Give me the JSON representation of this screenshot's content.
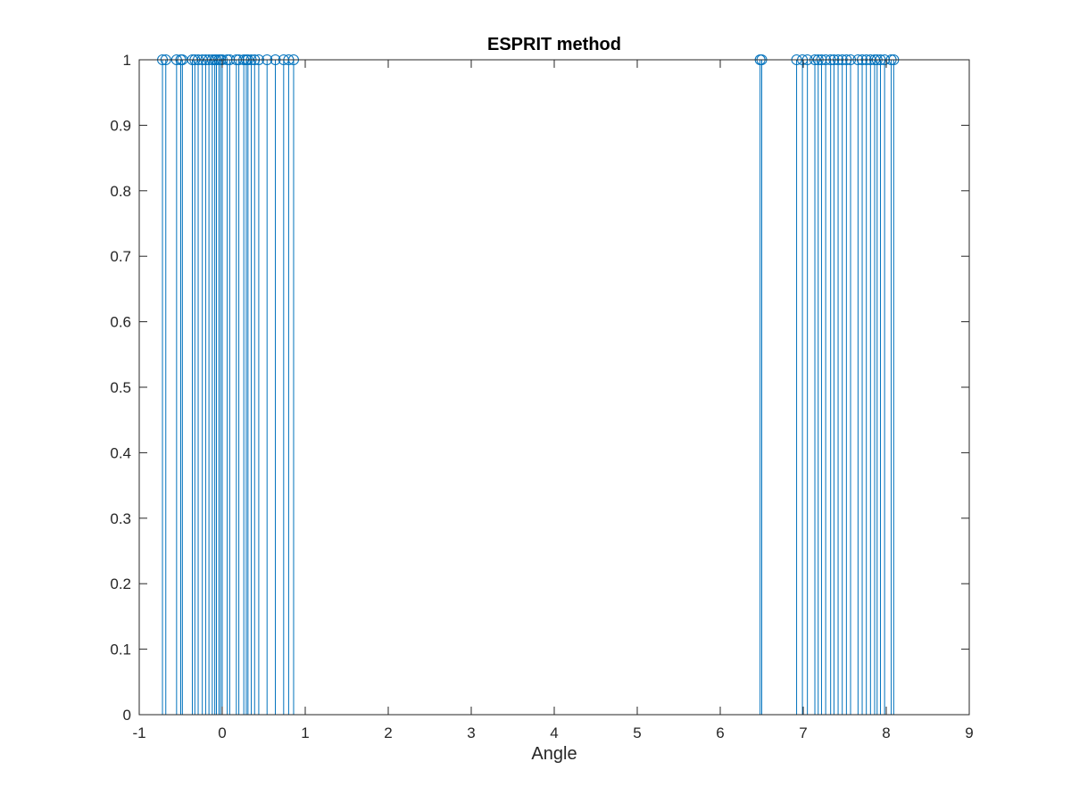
{
  "chart_data": {
    "type": "stem",
    "title": "ESPRIT method",
    "xlabel": "Angle",
    "ylabel": "",
    "xlim": [
      -1,
      9
    ],
    "ylim": [
      0,
      1
    ],
    "x_ticks": [
      "-1",
      "0",
      "1",
      "2",
      "3",
      "4",
      "5",
      "6",
      "7",
      "8",
      "9"
    ],
    "y_ticks": [
      "0",
      "0.1",
      "0.2",
      "0.3",
      "0.4",
      "0.5",
      "0.6",
      "0.7",
      "0.8",
      "0.9",
      "1"
    ],
    "grid": false,
    "legend": "none",
    "series_color": "#0072BD",
    "marker": "circle",
    "series": [
      {
        "x": [
          -0.72,
          -0.68,
          -0.55,
          -0.5,
          -0.48,
          -0.36,
          -0.33,
          -0.29,
          -0.24,
          -0.2,
          -0.16,
          -0.12,
          -0.09,
          -0.07,
          -0.04,
          -0.02,
          0.0,
          0.06,
          0.09,
          0.17,
          0.2,
          0.26,
          0.29,
          0.31,
          0.35,
          0.39,
          0.44,
          0.54,
          0.64,
          0.74,
          0.8,
          0.86,
          6.48,
          6.5,
          6.92,
          6.99,
          7.05,
          7.14,
          7.18,
          7.22,
          7.27,
          7.33,
          7.37,
          7.42,
          7.47,
          7.52,
          7.57,
          7.66,
          7.71,
          7.76,
          7.81,
          7.86,
          7.89,
          7.93,
          7.98,
          8.06,
          8.09
        ],
        "values": [
          1,
          1,
          1,
          1,
          1,
          1,
          1,
          1,
          1,
          1,
          1,
          1,
          1,
          1,
          1,
          1,
          1,
          1,
          1,
          1,
          1,
          1,
          1,
          1,
          1,
          1,
          1,
          1,
          1,
          1,
          1,
          1,
          1,
          1,
          1,
          1,
          1,
          1,
          1,
          1,
          1,
          1,
          1,
          1,
          1,
          1,
          1,
          1,
          1,
          1,
          1,
          1,
          1,
          1,
          1,
          1,
          1
        ]
      }
    ]
  }
}
